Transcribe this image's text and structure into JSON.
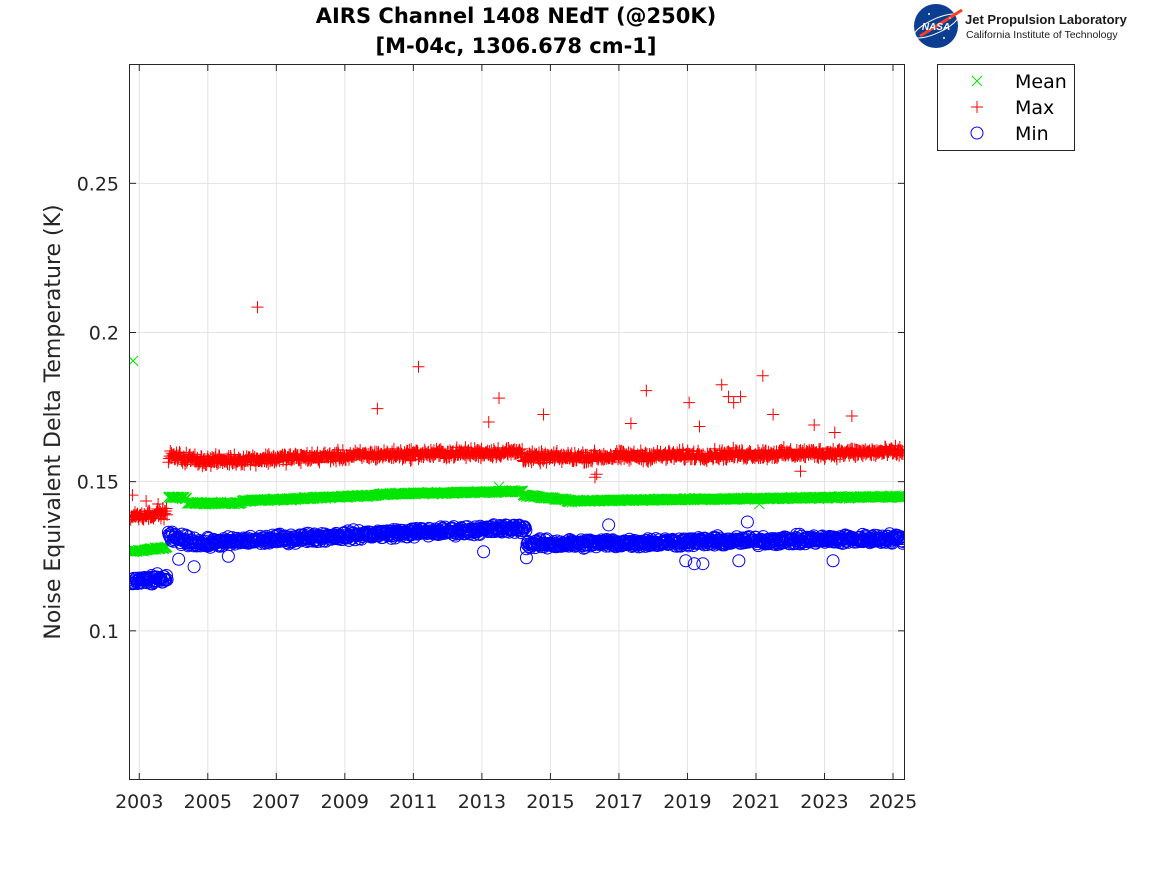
{
  "header": {
    "title_line1": "AIRS Channel 1408 NEdT (@250K)",
    "title_line2": "[M-04c, 1306.678 cm-1]"
  },
  "logo": {
    "org_name": "Jet Propulsion Laboratory",
    "org_sub": "California Institute of Technology",
    "agency_word": "NASA"
  },
  "chart_data": {
    "type": "scatter",
    "title": "AIRS Channel 1408 NEdT (@250K)",
    "subtitle": "[M-04c, 1306.678 cm-1]",
    "xlabel": "",
    "ylabel": "Noise Equivalent Delta Temperature (K)",
    "xlim": [
      2002.7,
      2025.35
    ],
    "ylim": [
      0.05,
      0.29
    ],
    "x_ticks": [
      2003,
      2005,
      2007,
      2009,
      2011,
      2013,
      2015,
      2017,
      2019,
      2021,
      2023,
      2025
    ],
    "x_tick_labels": [
      "2003",
      "2005",
      "2007",
      "2009",
      "2011",
      "2013",
      "2015",
      "2017",
      "2019",
      "2021",
      "2023",
      "2025"
    ],
    "y_ticks": [
      0.1,
      0.15,
      0.2,
      0.25
    ],
    "y_tick_labels": [
      "0.1",
      "0.15",
      "0.2",
      "0.25"
    ],
    "grid": true,
    "legend_position": "outside-top-right",
    "series": [
      {
        "name": "Mean",
        "marker": "x",
        "color": "#00e600",
        "segments": [
          {
            "x_start": 2002.75,
            "x_end": 2003.82,
            "y_start": 0.1265,
            "y_end": 0.128,
            "spread": 0.0006
          },
          {
            "x_start": 2003.85,
            "x_end": 2004.4,
            "y_start": 0.1448,
            "y_end": 0.1445,
            "spread": 0.0006
          },
          {
            "x_start": 2004.4,
            "x_end": 2006.0,
            "y_start": 0.1428,
            "y_end": 0.1428,
            "spread": 0.0005
          },
          {
            "x_start": 2006.0,
            "x_end": 2010.0,
            "y_start": 0.1435,
            "y_end": 0.1455,
            "spread": 0.0005
          },
          {
            "x_start": 2010.0,
            "x_end": 2014.2,
            "y_start": 0.1458,
            "y_end": 0.1468,
            "spread": 0.0005
          },
          {
            "x_start": 2014.2,
            "x_end": 2015.5,
            "y_start": 0.1455,
            "y_end": 0.1438,
            "spread": 0.0005
          },
          {
            "x_start": 2015.5,
            "x_end": 2025.3,
            "y_start": 0.1435,
            "y_end": 0.145,
            "spread": 0.0005
          }
        ],
        "outliers": [
          [
            2002.82,
            0.1905
          ],
          [
            2013.5,
            0.1483
          ],
          [
            2021.1,
            0.1425
          ]
        ]
      },
      {
        "name": "Max",
        "marker": "+",
        "color": "#ff0000",
        "segments": [
          {
            "x_start": 2002.75,
            "x_end": 2003.82,
            "y_start": 0.1385,
            "y_end": 0.1395,
            "spread": 0.0024
          },
          {
            "x_start": 2003.85,
            "x_end": 2005.0,
            "y_start": 0.1585,
            "y_end": 0.157,
            "spread": 0.0028
          },
          {
            "x_start": 2005.0,
            "x_end": 2010.0,
            "y_start": 0.157,
            "y_end": 0.159,
            "spread": 0.0026
          },
          {
            "x_start": 2010.0,
            "x_end": 2014.2,
            "y_start": 0.159,
            "y_end": 0.16,
            "spread": 0.0026
          },
          {
            "x_start": 2014.2,
            "x_end": 2025.3,
            "y_start": 0.158,
            "y_end": 0.16,
            "spread": 0.0026
          }
        ],
        "outliers": [
          [
            2002.8,
            0.1455
          ],
          [
            2003.2,
            0.1435
          ],
          [
            2003.55,
            0.1425
          ],
          [
            2006.45,
            0.2085
          ],
          [
            2009.95,
            0.1745
          ],
          [
            2011.15,
            0.1885
          ],
          [
            2013.2,
            0.17
          ],
          [
            2013.5,
            0.178
          ],
          [
            2014.8,
            0.1725
          ],
          [
            2016.3,
            0.1515
          ],
          [
            2016.35,
            0.1525
          ],
          [
            2017.35,
            0.1695
          ],
          [
            2017.8,
            0.1805
          ],
          [
            2019.05,
            0.1765
          ],
          [
            2019.35,
            0.1685
          ],
          [
            2020.0,
            0.1825
          ],
          [
            2020.2,
            0.1785
          ],
          [
            2020.35,
            0.1765
          ],
          [
            2020.55,
            0.1785
          ],
          [
            2021.2,
            0.1855
          ],
          [
            2021.5,
            0.1725
          ],
          [
            2022.3,
            0.1535
          ],
          [
            2022.7,
            0.169
          ],
          [
            2023.3,
            0.1665
          ],
          [
            2023.8,
            0.172
          ]
        ]
      },
      {
        "name": "Min",
        "marker": "o",
        "color": "#0000ff",
        "segments": [
          {
            "x_start": 2002.75,
            "x_end": 2003.82,
            "y_start": 0.1165,
            "y_end": 0.1175,
            "spread": 0.0022
          },
          {
            "x_start": 2003.85,
            "x_end": 2005.0,
            "y_start": 0.1315,
            "y_end": 0.129,
            "spread": 0.0024
          },
          {
            "x_start": 2005.0,
            "x_end": 2010.0,
            "y_start": 0.1295,
            "y_end": 0.1325,
            "spread": 0.0022
          },
          {
            "x_start": 2010.0,
            "x_end": 2014.3,
            "y_start": 0.1325,
            "y_end": 0.1345,
            "spread": 0.0022
          },
          {
            "x_start": 2014.3,
            "x_end": 2025.3,
            "y_start": 0.129,
            "y_end": 0.131,
            "spread": 0.0022
          }
        ],
        "outliers": [
          [
            2004.15,
            0.124
          ],
          [
            2004.6,
            0.1215
          ],
          [
            2005.6,
            0.125
          ],
          [
            2013.05,
            0.1265
          ],
          [
            2014.3,
            0.1245
          ],
          [
            2016.7,
            0.1355
          ],
          [
            2018.95,
            0.1235
          ],
          [
            2019.2,
            0.1225
          ],
          [
            2019.45,
            0.1225
          ],
          [
            2020.5,
            0.1235
          ],
          [
            2020.75,
            0.1365
          ],
          [
            2023.25,
            0.1235
          ]
        ]
      }
    ]
  }
}
